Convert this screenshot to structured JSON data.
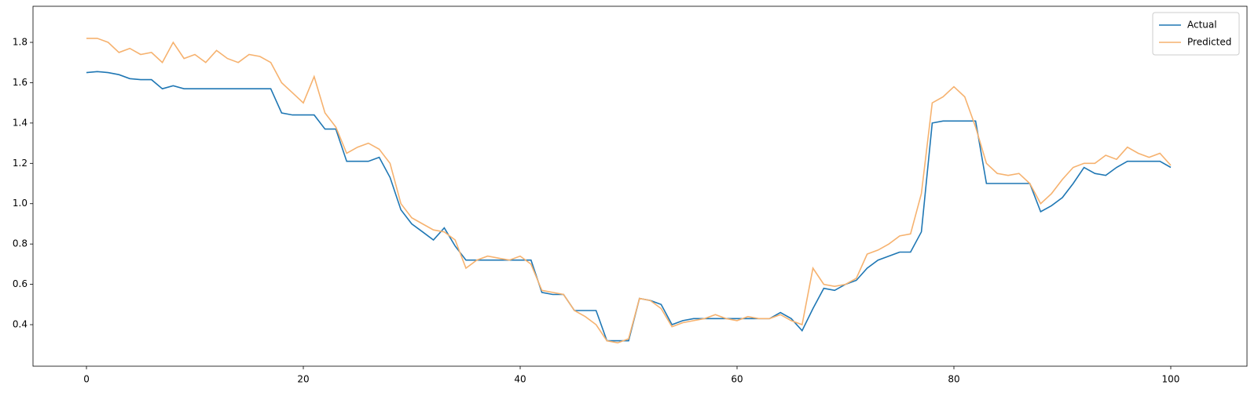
{
  "chart_data": {
    "type": "line",
    "x": [
      0,
      1,
      2,
      3,
      4,
      5,
      6,
      7,
      8,
      9,
      10,
      11,
      12,
      13,
      14,
      15,
      16,
      17,
      18,
      19,
      20,
      21,
      22,
      23,
      24,
      25,
      26,
      27,
      28,
      29,
      30,
      31,
      32,
      33,
      34,
      35,
      36,
      37,
      38,
      39,
      40,
      41,
      42,
      43,
      44,
      45,
      46,
      47,
      48,
      49,
      50,
      51,
      52,
      53,
      54,
      55,
      56,
      57,
      58,
      59,
      60,
      61,
      62,
      63,
      64,
      65,
      66,
      67,
      68,
      69,
      70,
      71,
      72,
      73,
      74,
      75,
      76,
      77,
      78,
      79,
      80,
      81,
      82,
      83,
      84,
      85,
      86,
      87,
      88,
      89,
      90,
      91,
      92,
      93,
      94,
      95,
      96,
      97,
      98,
      99,
      100
    ],
    "series": [
      {
        "name": "Actual",
        "color": "#1f77b4",
        "values": [
          1.65,
          1.655,
          1.65,
          1.64,
          1.62,
          1.615,
          1.615,
          1.57,
          1.585,
          1.57,
          1.57,
          1.57,
          1.57,
          1.57,
          1.57,
          1.57,
          1.57,
          1.57,
          1.45,
          1.44,
          1.44,
          1.44,
          1.37,
          1.37,
          1.21,
          1.21,
          1.21,
          1.23,
          1.13,
          0.97,
          0.9,
          0.86,
          0.82,
          0.88,
          0.79,
          0.72,
          0.72,
          0.72,
          0.72,
          0.72,
          0.72,
          0.72,
          0.56,
          0.55,
          0.55,
          0.47,
          0.47,
          0.47,
          0.32,
          0.32,
          0.32,
          0.53,
          0.52,
          0.5,
          0.4,
          0.42,
          0.43,
          0.43,
          0.43,
          0.43,
          0.43,
          0.43,
          0.43,
          0.43,
          0.46,
          0.43,
          0.37,
          0.48,
          0.58,
          0.57,
          0.6,
          0.62,
          0.68,
          0.72,
          0.74,
          0.76,
          0.76,
          0.86,
          1.4,
          1.41,
          1.41,
          1.41,
          1.41,
          1.1,
          1.1,
          1.1,
          1.1,
          1.1,
          0.96,
          0.99,
          1.03,
          1.1,
          1.18,
          1.15,
          1.14,
          1.18,
          1.21,
          1.21,
          1.21,
          1.21,
          1.18
        ]
      },
      {
        "name": "Predicted",
        "color": "#f6b26f",
        "values": [
          1.82,
          1.82,
          1.8,
          1.75,
          1.77,
          1.74,
          1.75,
          1.7,
          1.8,
          1.72,
          1.74,
          1.7,
          1.76,
          1.72,
          1.7,
          1.74,
          1.73,
          1.7,
          1.6,
          1.55,
          1.5,
          1.63,
          1.45,
          1.38,
          1.25,
          1.28,
          1.3,
          1.27,
          1.2,
          1.0,
          0.93,
          0.9,
          0.87,
          0.86,
          0.82,
          0.68,
          0.72,
          0.74,
          0.73,
          0.72,
          0.74,
          0.7,
          0.57,
          0.56,
          0.55,
          0.47,
          0.44,
          0.4,
          0.32,
          0.31,
          0.33,
          0.53,
          0.52,
          0.48,
          0.39,
          0.41,
          0.42,
          0.43,
          0.45,
          0.43,
          0.42,
          0.44,
          0.43,
          0.43,
          0.45,
          0.42,
          0.4,
          0.68,
          0.6,
          0.59,
          0.6,
          0.63,
          0.75,
          0.77,
          0.8,
          0.84,
          0.85,
          1.05,
          1.5,
          1.53,
          1.58,
          1.53,
          1.38,
          1.2,
          1.15,
          1.14,
          1.15,
          1.1,
          1.0,
          1.05,
          1.12,
          1.18,
          1.2,
          1.2,
          1.24,
          1.22,
          1.28,
          1.25,
          1.23,
          1.25,
          1.19
        ]
      }
    ],
    "xlim": [
      -4.93,
      107.03
    ],
    "xticks": [
      0,
      20,
      40,
      60,
      80,
      100
    ],
    "ylim": [
      0.194,
      1.979
    ],
    "yticks": [
      0.4,
      0.6,
      0.8,
      {
        "value": 1,
        "label": "1.0"
      },
      1.2,
      1.4,
      1.6,
      1.8
    ],
    "legend": "upper right",
    "grid": false
  }
}
